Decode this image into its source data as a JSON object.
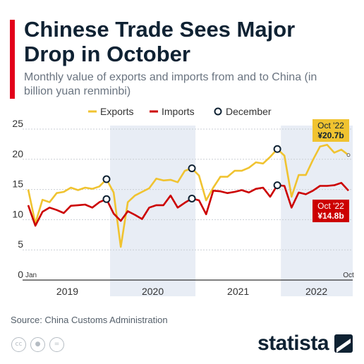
{
  "header": {
    "title": "Chinese Trade Sees Major Drop in October",
    "subtitle": "Monthly value of exports and imports from and to China (in billion yuan renminbi)"
  },
  "footer": {
    "source": "Source: China Customs Administration",
    "brand": "statista"
  },
  "colors": {
    "accent": "#e2001a",
    "exports": "#f0c330",
    "imports": "#cc0000",
    "year_band": "#e8edf5",
    "title": "#0f2233"
  },
  "chart_data": {
    "type": "line",
    "ylim": [
      0,
      25
    ],
    "yticks": [
      0,
      5,
      10,
      15,
      20,
      25
    ],
    "grid": true,
    "legend_position": "top",
    "legend": [
      "Exports",
      "Imports",
      "December"
    ],
    "year_labels": [
      "2019",
      "2020",
      "2021",
      "2022"
    ],
    "x_start_label": "Jan",
    "x_end_label": "Oct",
    "x_months": [
      "2019-01",
      "2019-02",
      "2019-03",
      "2019-04",
      "2019-05",
      "2019-06",
      "2019-07",
      "2019-08",
      "2019-09",
      "2019-10",
      "2019-11",
      "2019-12",
      "2020-01",
      "2020-02",
      "2020-03",
      "2020-04",
      "2020-05",
      "2020-06",
      "2020-07",
      "2020-08",
      "2020-09",
      "2020-10",
      "2020-11",
      "2020-12",
      "2021-01",
      "2021-02",
      "2021-03",
      "2021-04",
      "2021-05",
      "2021-06",
      "2021-07",
      "2021-08",
      "2021-09",
      "2021-10",
      "2021-11",
      "2021-12",
      "2022-01",
      "2022-02",
      "2022-03",
      "2022-04",
      "2022-05",
      "2022-06",
      "2022-07",
      "2022-08",
      "2022-09",
      "2022-10"
    ],
    "series": [
      {
        "name": "Exports",
        "values": [
          15.0,
          9.4,
          13.3,
          12.9,
          14.4,
          14.6,
          15.3,
          14.9,
          15.3,
          15.1,
          15.5,
          16.7,
          14.5,
          5.5,
          12.9,
          14.0,
          14.6,
          15.2,
          16.8,
          16.5,
          16.6,
          16.2,
          18.1,
          18.5,
          17.3,
          13.2,
          15.3,
          17.1,
          17.1,
          18.1,
          18.1,
          18.6,
          19.5,
          19.3,
          20.4,
          21.7,
          20.6,
          13.8,
          17.4,
          17.4,
          19.9,
          22.1,
          22.4,
          21.1,
          21.6,
          20.7
        ]
      },
      {
        "name": "Imports",
        "values": [
          12.4,
          9.0,
          11.3,
          12.0,
          11.6,
          11.1,
          12.3,
          12.4,
          12.5,
          12.0,
          12.9,
          13.4,
          11.0,
          9.8,
          11.4,
          10.8,
          10.1,
          12.0,
          12.4,
          12.4,
          14.0,
          12.0,
          12.8,
          13.5,
          13.2,
          10.9,
          14.8,
          14.7,
          14.4,
          14.6,
          14.9,
          14.5,
          15.1,
          15.3,
          13.8,
          15.7,
          15.6,
          12.0,
          14.5,
          14.2,
          14.8,
          15.6,
          15.6,
          15.7,
          16.1,
          14.8
        ]
      }
    ],
    "december_markers": [
      {
        "month": "2019-12",
        "exports": 16.7,
        "imports": 13.4
      },
      {
        "month": "2020-12",
        "exports": 18.5,
        "imports": 13.5
      },
      {
        "month": "2021-12",
        "exports": 21.7,
        "imports": 15.7
      }
    ],
    "annotations": [
      {
        "series": "Exports",
        "line1": "Oct '22",
        "line2": "¥20.7b"
      },
      {
        "series": "Imports",
        "line1": "Oct '22",
        "line2": "¥14.8b"
      }
    ]
  }
}
